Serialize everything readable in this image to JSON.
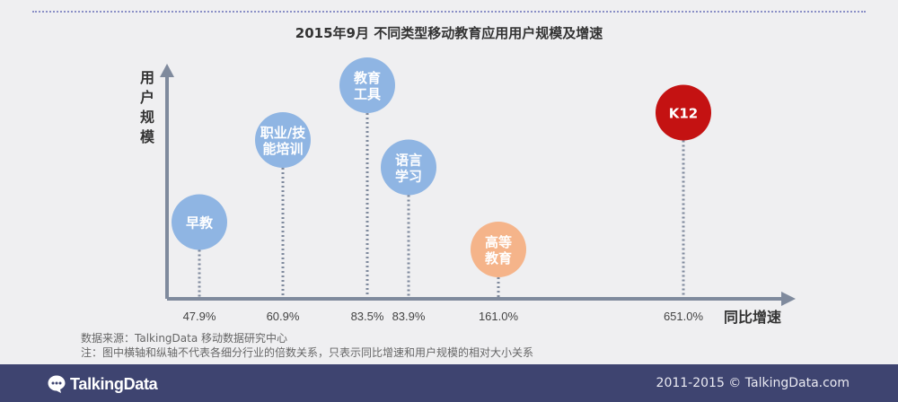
{
  "title": "2015年9月  不同类型移动教育应用用户规模及增速",
  "chart_data": {
    "type": "scatter",
    "ylabel": "用户规模",
    "xlabel": "同比增速",
    "points": [
      {
        "label": "早教",
        "x_label": "47.9%",
        "x": 47.9,
        "size_rank": 2,
        "color": "#8fb5e3"
      },
      {
        "label": "职业/技能培训",
        "x_label": "60.9%",
        "x": 60.9,
        "size_rank": 5,
        "color": "#8fb5e3"
      },
      {
        "label": "教育工具",
        "x_label": "83.5%",
        "x": 83.5,
        "size_rank": 7,
        "color": "#8fb5e3"
      },
      {
        "label": "语言学习",
        "x_label": "83.9%",
        "x": 83.9,
        "size_rank": 4,
        "color": "#8fb5e3"
      },
      {
        "label": "高等教育",
        "x_label": "161.0%",
        "x": 161.0,
        "size_rank": 1,
        "color": "#f5b48a"
      },
      {
        "label": "K12",
        "x_label": "651.0%",
        "x": 651.0,
        "size_rank": 6,
        "color": "#c41212"
      }
    ]
  },
  "source": "数据来源：TalkingData 移动数据研究中心",
  "note": "注：图中横轴和纵轴不代表各细分行业的倍数关系，只表示同比增速和用户规模的相对大小关系",
  "footer": {
    "logo": "TalkingData",
    "copyright": "2011-2015 © TalkingData.com"
  }
}
